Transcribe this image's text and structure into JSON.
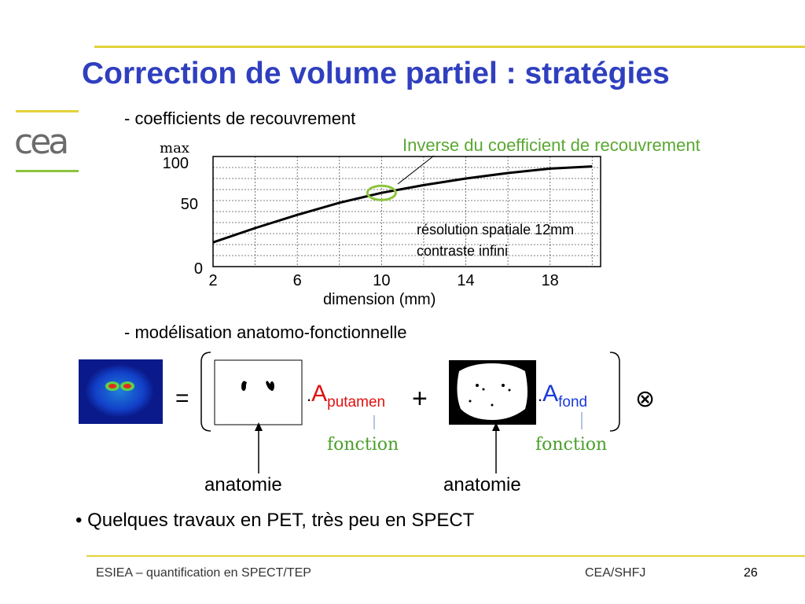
{
  "slide": {
    "title": "Correction de volume partiel : stratégies",
    "section1": "- coefficients de recouvrement",
    "section2": "- modélisation anatomo-fonctionnelle",
    "inverse_label": "Inverse du coefficient de recouvrement",
    "note_line1": "résolution spatiale 12mm",
    "note_line2": "contraste infini",
    "equals": "=",
    "plus": "+",
    "otimes": "⊗",
    "a_putamen": {
      "dot": ".",
      "A": "A",
      "sub": "putamen"
    },
    "a_fond": {
      "dot": ".",
      "A": "A",
      "sub": "fond"
    },
    "fonction_1": "fonction",
    "fonction_2": "fonction",
    "anatomie_1": "anatomie",
    "anatomie_2": "anatomie",
    "bullet": "• Quelques travaux en PET, très peu en SPECT",
    "logo_text": "cea",
    "colors": {
      "title": "#2f3fbf",
      "accent_line": "#e3d23a",
      "green": "#5aa832",
      "blue": "#1a3ad8",
      "red": "#e01010"
    }
  },
  "chart_data": {
    "type": "line",
    "x": [
      2,
      4,
      6,
      8,
      10,
      12,
      14,
      16,
      18,
      20
    ],
    "series": [
      {
        "values": [
          22,
          35,
          47,
          58,
          67,
          74,
          80,
          85,
          89,
          91
        ]
      }
    ],
    "xlabel": "dimension (mm)",
    "ylabel_top": "max",
    "xticks": [
      "2",
      "6",
      "10",
      "14",
      "18"
    ],
    "yticks": [
      "0",
      "50",
      "100"
    ],
    "xlim": [
      2,
      20.4
    ],
    "ylim": [
      0,
      100
    ],
    "grid": true,
    "highlight_x": 10
  },
  "footer": {
    "left": "ESIEA – quantification en SPECT/TEP",
    "center": "CEA/SHFJ",
    "page": "26"
  }
}
